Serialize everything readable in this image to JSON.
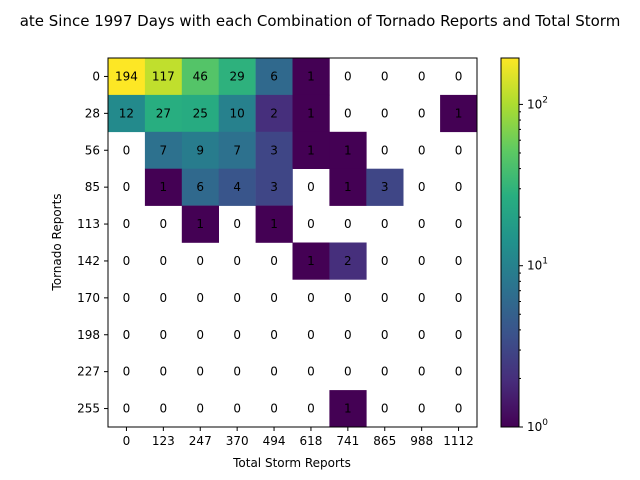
{
  "chart_data": {
    "type": "heatmap",
    "title": "ate Since 1997 Days with each Combination of Tornado Reports and Total Storm",
    "xlabel": "Total Storm Reports",
    "ylabel": "Tornado Reports",
    "x_ticks": [
      "0",
      "123",
      "247",
      "370",
      "494",
      "618",
      "741",
      "865",
      "988",
      "1112"
    ],
    "y_ticks": [
      "0",
      "28",
      "56",
      "85",
      "113",
      "142",
      "170",
      "198",
      "227",
      "255"
    ],
    "color_scale": "log",
    "colormap": "viridis",
    "colorbar": {
      "min": 1,
      "max": 194,
      "ticks": [
        "10^0",
        "10^1",
        "10^2"
      ]
    },
    "values": [
      [
        194,
        117,
        46,
        29,
        6,
        1,
        0,
        0,
        0,
        0
      ],
      [
        12,
        27,
        25,
        10,
        2,
        1,
        0,
        0,
        0,
        1
      ],
      [
        0,
        7,
        9,
        7,
        3,
        1,
        1,
        0,
        0,
        0
      ],
      [
        0,
        1,
        6,
        4,
        3,
        0,
        1,
        3,
        0,
        0
      ],
      [
        0,
        0,
        1,
        0,
        1,
        0,
        0,
        0,
        0,
        0
      ],
      [
        0,
        0,
        0,
        0,
        0,
        1,
        2,
        0,
        0,
        0
      ],
      [
        0,
        0,
        0,
        0,
        0,
        0,
        0,
        0,
        0,
        0
      ],
      [
        0,
        0,
        0,
        0,
        0,
        0,
        0,
        0,
        0,
        0
      ],
      [
        0,
        0,
        0,
        0,
        0,
        0,
        0,
        0,
        0,
        0
      ],
      [
        0,
        0,
        0,
        0,
        0,
        0,
        1,
        0,
        0,
        0
      ]
    ],
    "zero_cells": "blank"
  }
}
